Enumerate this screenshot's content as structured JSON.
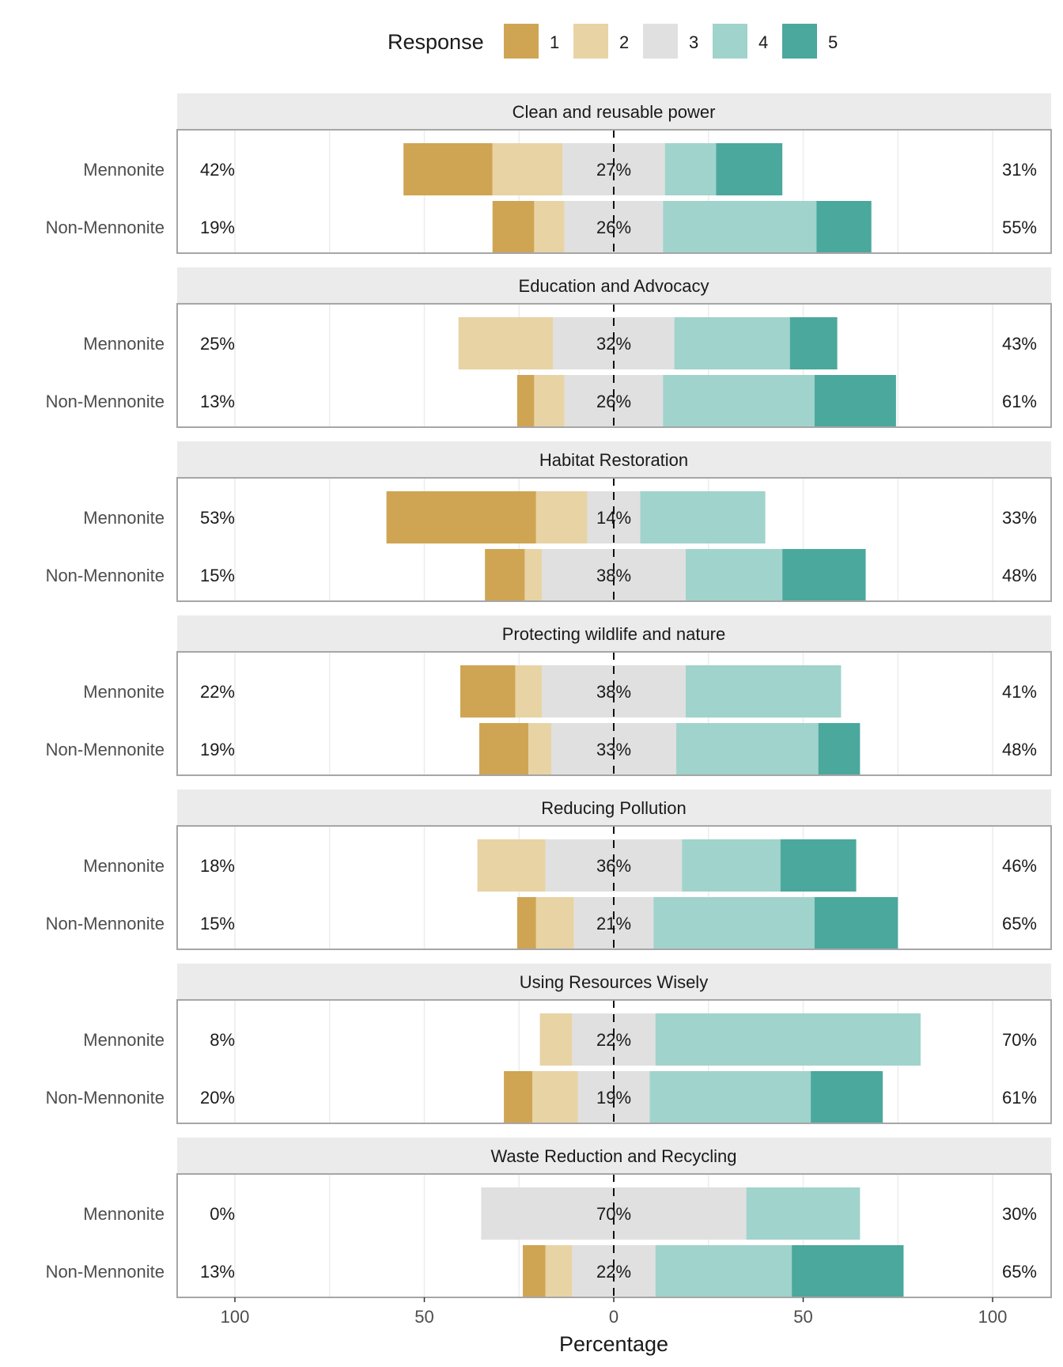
{
  "chart_data": {
    "type": "bar",
    "subtype": "diverging-stacked-likert",
    "xlabel": "Percentage",
    "x_ticks": [
      {
        "value": -100,
        "label": "100"
      },
      {
        "value": -50,
        "label": "50"
      },
      {
        "value": 0,
        "label": "0"
      },
      {
        "value": 50,
        "label": "50"
      },
      {
        "value": 100,
        "label": "100"
      }
    ],
    "xlim": [
      -100,
      100
    ],
    "grid": true,
    "legend": {
      "title": "Response",
      "position": "top",
      "levels": [
        "1",
        "2",
        "3",
        "4",
        "5"
      ],
      "colors": [
        "#cfa553",
        "#e8d3a5",
        "#e0e0e0",
        "#a0d3cc",
        "#4ba89d"
      ]
    },
    "row_labels": [
      "Mennonite",
      "Non-Mennonite"
    ],
    "panels": [
      {
        "title": "Clean and reusable power",
        "rows": [
          {
            "label": "Mennonite",
            "values": [
              23.5,
              18.5,
              27,
              13.5,
              17.5
            ],
            "low_label": "42%",
            "mid_label": "27%",
            "high_label": "31%"
          },
          {
            "label": "Non-Mennonite",
            "values": [
              11,
              8,
              26,
              40.5,
              14.5
            ],
            "low_label": "19%",
            "mid_label": "26%",
            "high_label": "55%"
          }
        ]
      },
      {
        "title": "Education and Advocacy",
        "rows": [
          {
            "label": "Mennonite",
            "values": [
              0,
              25,
              32,
              30.5,
              12.5
            ],
            "low_label": "25%",
            "mid_label": "32%",
            "high_label": "43%"
          },
          {
            "label": "Non-Mennonite",
            "values": [
              4.5,
              8,
              26,
              40,
              21.5
            ],
            "low_label": "13%",
            "mid_label": "26%",
            "high_label": "61%"
          }
        ]
      },
      {
        "title": "Habitat Restoration",
        "rows": [
          {
            "label": "Mennonite",
            "values": [
              39.5,
              13.5,
              14,
              33,
              0
            ],
            "low_label": "53%",
            "mid_label": "14%",
            "high_label": "33%"
          },
          {
            "label": "Non-Mennonite",
            "values": [
              10.5,
              4.5,
              38,
              25.5,
              22
            ],
            "low_label": "15%",
            "mid_label": "38%",
            "high_label": "48%"
          }
        ]
      },
      {
        "title": "Protecting wildlife and nature",
        "rows": [
          {
            "label": "Mennonite",
            "values": [
              14.5,
              7,
              38,
              41,
              0
            ],
            "low_label": "22%",
            "mid_label": "38%",
            "high_label": "41%"
          },
          {
            "label": "Non-Mennonite",
            "values": [
              13,
              6,
              33,
              37.5,
              11
            ],
            "low_label": "19%",
            "mid_label": "33%",
            "high_label": "48%"
          }
        ]
      },
      {
        "title": "Reducing Pollution",
        "rows": [
          {
            "label": "Mennonite",
            "values": [
              0,
              18,
              36,
              26,
              20
            ],
            "low_label": "18%",
            "mid_label": "36%",
            "high_label": "46%"
          },
          {
            "label": "Non-Mennonite",
            "values": [
              5,
              10,
              21,
              42.5,
              22
            ],
            "low_label": "15%",
            "mid_label": "21%",
            "high_label": "65%"
          }
        ]
      },
      {
        "title": "Using Resources Wisely",
        "rows": [
          {
            "label": "Mennonite",
            "values": [
              0,
              8.5,
              22,
              70,
              0
            ],
            "low_label": "8%",
            "mid_label": "22%",
            "high_label": "70%"
          },
          {
            "label": "Non-Mennonite",
            "values": [
              7.5,
              12,
              19,
              42.5,
              19
            ],
            "low_label": "20%",
            "mid_label": "19%",
            "high_label": "61%"
          }
        ]
      },
      {
        "title": "Waste Reduction and Recycling",
        "rows": [
          {
            "label": "Mennonite",
            "values": [
              0,
              0,
              70,
              30,
              0
            ],
            "low_label": "0%",
            "mid_label": "70%",
            "high_label": "30%"
          },
          {
            "label": "Non-Mennonite",
            "values": [
              6,
              7,
              22,
              36,
              29.5
            ],
            "low_label": "13%",
            "mid_label": "22%",
            "high_label": "65%"
          }
        ]
      }
    ]
  }
}
